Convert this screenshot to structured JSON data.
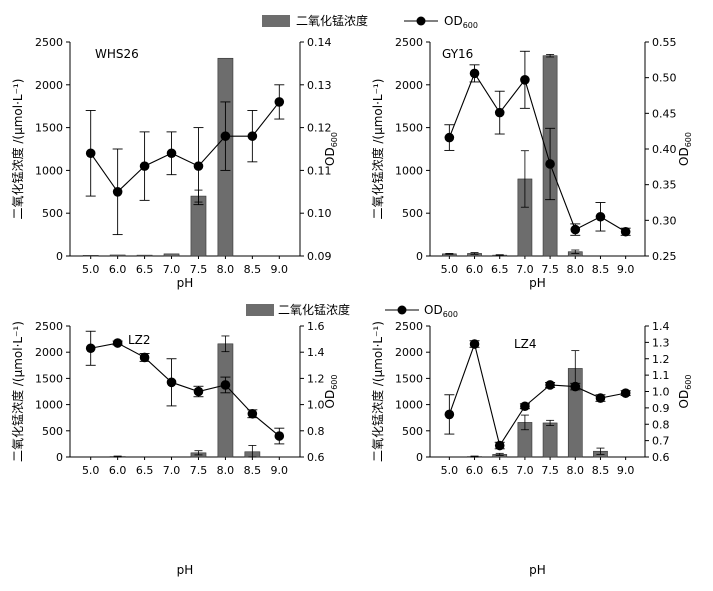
{
  "legends": [
    {
      "bar_label": "二氧化锰浓度",
      "line_label": "OD",
      "line_sub": "600"
    },
    {
      "bar_label": "二氧化锰浓度",
      "line_label": "OD",
      "line_sub": "600"
    }
  ],
  "colors": {
    "bar": "#6d6d6d",
    "axis": "#000000",
    "point": "#000000"
  },
  "chart_data": [
    {
      "type": "bar+line",
      "title": "WHS26",
      "categories": [
        "5.0",
        "6.0",
        "6.5",
        "7.0",
        "7.5",
        "8.0",
        "8.5",
        "9.0"
      ],
      "xlabel": "pH",
      "ylabel_left": "二氧化锰浓度 /(μmol·L⁻¹)",
      "ylabel_right_main": "OD",
      "ylabel_right_sub": "600",
      "y_left": {
        "min": 0,
        "max": 2500,
        "ticks": [
          "0",
          "500",
          "1000",
          "1500",
          "2000",
          "2500"
        ],
        "tick_values": [
          0,
          500,
          1000,
          1500,
          2000,
          2500
        ]
      },
      "y_right": {
        "min": 0.09,
        "max": 0.14,
        "ticks": [
          "0.09",
          "0.10",
          "0.11",
          "0.12",
          "0.13",
          "0.14"
        ],
        "tick_values": [
          0.09,
          0.1,
          0.11,
          0.12,
          0.13,
          0.14
        ]
      },
      "bars": [
        8,
        12,
        10,
        25,
        700,
        2310,
        0,
        0
      ],
      "bar_err": [
        0,
        0,
        0,
        0,
        70,
        0,
        0,
        0
      ],
      "line": [
        0.114,
        0.105,
        0.111,
        0.114,
        0.111,
        0.118,
        0.118,
        0.126
      ],
      "line_err": [
        0.01,
        0.01,
        0.008,
        0.005,
        0.009,
        0.008,
        0.006,
        0.004
      ]
    },
    {
      "type": "bar+line",
      "title": "GY16",
      "categories": [
        "5.0",
        "6.0",
        "6.5",
        "7.0",
        "7.5",
        "8.0",
        "8.5",
        "9.0"
      ],
      "xlabel": "pH",
      "ylabel_left": "二氧化锰浓度 /(μmol·L⁻¹)",
      "ylabel_right_main": "OD",
      "ylabel_right_sub": "600",
      "y_left": {
        "min": 0,
        "max": 2500,
        "ticks": [
          "0",
          "500",
          "1000",
          "1500",
          "2000",
          "2500"
        ],
        "tick_values": [
          0,
          500,
          1000,
          1500,
          2000,
          2500
        ]
      },
      "y_right": {
        "min": 0.25,
        "max": 0.55,
        "ticks": [
          "0.25",
          "0.30",
          "0.35",
          "0.40",
          "0.45",
          "0.50",
          "0.55"
        ],
        "tick_values": [
          0.25,
          0.3,
          0.35,
          0.4,
          0.45,
          0.5,
          0.55
        ]
      },
      "bars": [
        25,
        30,
        10,
        900,
        2340,
        50,
        0,
        0
      ],
      "bar_err": [
        5,
        10,
        5,
        330,
        15,
        20,
        0,
        0
      ],
      "line": [
        0.416,
        0.506,
        0.451,
        0.497,
        0.379,
        0.287,
        0.305,
        0.284
      ],
      "line_err": [
        0.018,
        0.012,
        0.03,
        0.04,
        0.05,
        0.008,
        0.02,
        0.005
      ]
    },
    {
      "type": "bar+line",
      "title": "LZ2",
      "categories": [
        "5.0",
        "6.0",
        "6.5",
        "7.0",
        "7.5",
        "8.0",
        "8.5",
        "9.0"
      ],
      "xlabel": "pH",
      "ylabel_left": "二氧化锰浓度 /(μmol·L⁻¹)",
      "ylabel_right_main": "OD",
      "ylabel_right_sub": "600",
      "y_left": {
        "min": 0,
        "max": 2500,
        "ticks": [
          "0",
          "500",
          "1000",
          "1500",
          "2000",
          "2500"
        ],
        "tick_values": [
          0,
          500,
          1000,
          1500,
          2000,
          2500
        ]
      },
      "y_right": {
        "min": 0.6,
        "max": 1.6,
        "ticks": [
          "0.6",
          "0.8",
          "1.0",
          "1.2",
          "1.4",
          "1.6"
        ],
        "tick_values": [
          0.6,
          0.8,
          1.0,
          1.2,
          1.4,
          1.6
        ]
      },
      "bars": [
        0,
        10,
        0,
        0,
        80,
        2160,
        100,
        0
      ],
      "bar_err": [
        0,
        8,
        0,
        0,
        40,
        150,
        120,
        0
      ],
      "line": [
        1.43,
        1.47,
        1.36,
        1.17,
        1.1,
        1.15,
        0.93,
        0.76
      ],
      "line_err": [
        0.13,
        0.015,
        0.03,
        0.18,
        0.04,
        0.06,
        0.03,
        0.06
      ]
    },
    {
      "type": "bar+line",
      "title": "LZ4",
      "categories": [
        "5.0",
        "6.0",
        "6.5",
        "7.0",
        "7.5",
        "8.0",
        "8.5",
        "9.0"
      ],
      "xlabel": "pH",
      "ylabel_left": "二氧化锰浓度 /(μmol·L⁻¹)",
      "ylabel_right_main": "OD",
      "ylabel_right_sub": "600",
      "y_left": {
        "min": 0,
        "max": 2500,
        "ticks": [
          "0",
          "500",
          "1000",
          "1500",
          "2000",
          "2500"
        ],
        "tick_values": [
          0,
          500,
          1000,
          1500,
          2000,
          2500
        ]
      },
      "y_right": {
        "min": 0.6,
        "max": 1.4,
        "ticks": [
          "0.6",
          "0.7",
          "0.8",
          "0.9",
          "1.0",
          "1.1",
          "1.2",
          "1.3",
          "1.4"
        ],
        "tick_values": [
          0.6,
          0.7,
          0.8,
          0.9,
          1.0,
          1.1,
          1.2,
          1.3,
          1.4
        ]
      },
      "bars": [
        0,
        10,
        50,
        660,
        650,
        1690,
        110,
        0
      ],
      "bar_err": [
        0,
        8,
        20,
        140,
        50,
        340,
        60,
        0
      ],
      "line": [
        0.86,
        1.29,
        0.67,
        0.91,
        1.04,
        1.03,
        0.96,
        0.99
      ],
      "line_err": [
        0.12,
        0.02,
        0.02,
        0.015,
        0.015,
        0.02,
        0.02,
        0.015
      ]
    }
  ]
}
